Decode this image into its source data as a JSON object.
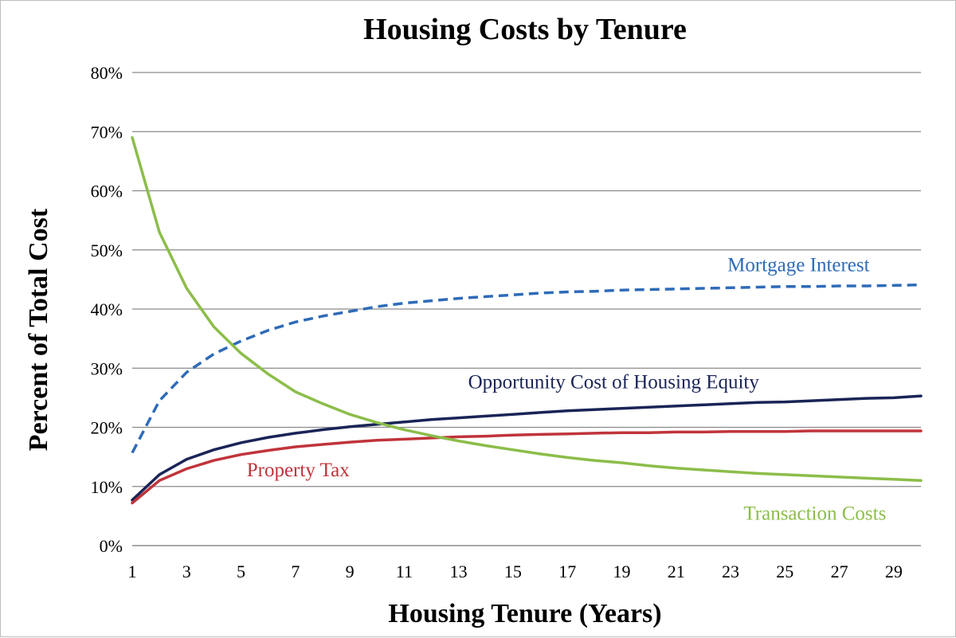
{
  "chart_data": {
    "type": "line",
    "title": "Housing Costs by Tenure",
    "xlabel": "Housing Tenure (Years)",
    "ylabel": "Percent of Total Cost",
    "xlim": [
      1,
      30
    ],
    "ylim": [
      0,
      80
    ],
    "grid": true,
    "y_ticks": [
      {
        "value": 0,
        "label": "0%"
      },
      {
        "value": 10,
        "label": "10%"
      },
      {
        "value": 20,
        "label": "20%"
      },
      {
        "value": 30,
        "label": "30%"
      },
      {
        "value": 40,
        "label": "40%"
      },
      {
        "value": 50,
        "label": "50%"
      },
      {
        "value": 60,
        "label": "60%"
      },
      {
        "value": 70,
        "label": "70%"
      },
      {
        "value": 80,
        "label": "80%"
      }
    ],
    "x_ticks": [
      {
        "value": 1,
        "label": "1"
      },
      {
        "value": 3,
        "label": "3"
      },
      {
        "value": 5,
        "label": "5"
      },
      {
        "value": 7,
        "label": "7"
      },
      {
        "value": 9,
        "label": "9"
      },
      {
        "value": 11,
        "label": "11"
      },
      {
        "value": 13,
        "label": "13"
      },
      {
        "value": 15,
        "label": "15"
      },
      {
        "value": 17,
        "label": "17"
      },
      {
        "value": 19,
        "label": "19"
      },
      {
        "value": 21,
        "label": "21"
      },
      {
        "value": 23,
        "label": "23"
      },
      {
        "value": 25,
        "label": "25"
      },
      {
        "value": 27,
        "label": "27"
      },
      {
        "value": 29,
        "label": "29"
      }
    ],
    "x": [
      1,
      2,
      3,
      4,
      5,
      6,
      7,
      8,
      9,
      10,
      11,
      12,
      13,
      14,
      15,
      16,
      17,
      18,
      19,
      20,
      21,
      22,
      23,
      24,
      25,
      26,
      27,
      28,
      29,
      30
    ],
    "series": [
      {
        "name": "Mortgage Interest",
        "color": "#2e6bb8",
        "dashed": true,
        "label_at": [
          25.5,
          46.4
        ],
        "label_anchor": "middle",
        "values": [
          15.7,
          24.5,
          29.3,
          32.4,
          34.6,
          36.4,
          37.8,
          38.8,
          39.6,
          40.4,
          41.0,
          41.4,
          41.8,
          42.1,
          42.4,
          42.7,
          42.9,
          43.0,
          43.2,
          43.3,
          43.4,
          43.5,
          43.6,
          43.7,
          43.8,
          43.8,
          43.9,
          43.9,
          44.0,
          44.1
        ]
      },
      {
        "name": "Opportunity Cost of Housing Equity",
        "color": "#1a2457",
        "dashed": false,
        "label_at": [
          18.7,
          26.6
        ],
        "label_anchor": "middle",
        "values": [
          7.7,
          12.0,
          14.6,
          16.2,
          17.4,
          18.3,
          19.0,
          19.6,
          20.1,
          20.5,
          20.9,
          21.3,
          21.6,
          21.9,
          22.2,
          22.5,
          22.8,
          23.0,
          23.2,
          23.4,
          23.6,
          23.8,
          24.0,
          24.2,
          24.3,
          24.5,
          24.7,
          24.9,
          25.0,
          25.3
        ]
      },
      {
        "name": "Property Tax",
        "color": "#c0343b",
        "dashed": false,
        "label_at": [
          7.1,
          11.7
        ],
        "label_anchor": "middle",
        "values": [
          7.2,
          11.0,
          13.0,
          14.4,
          15.4,
          16.1,
          16.7,
          17.1,
          17.5,
          17.8,
          18.0,
          18.2,
          18.4,
          18.5,
          18.7,
          18.8,
          18.9,
          19.0,
          19.1,
          19.1,
          19.2,
          19.2,
          19.3,
          19.3,
          19.3,
          19.4,
          19.4,
          19.4,
          19.4,
          19.4
        ]
      },
      {
        "name": "Transaction Costs",
        "color": "#8cbd4a",
        "dashed": false,
        "label_at": [
          26.1,
          4.4
        ],
        "label_anchor": "middle",
        "values": [
          69.0,
          53.0,
          43.5,
          37.0,
          32.5,
          29.0,
          26.0,
          24.0,
          22.2,
          20.8,
          19.6,
          18.6,
          17.7,
          16.9,
          16.2,
          15.5,
          14.9,
          14.4,
          14.0,
          13.5,
          13.1,
          12.8,
          12.5,
          12.2,
          12.0,
          11.8,
          11.6,
          11.4,
          11.2,
          11.0
        ]
      }
    ]
  }
}
